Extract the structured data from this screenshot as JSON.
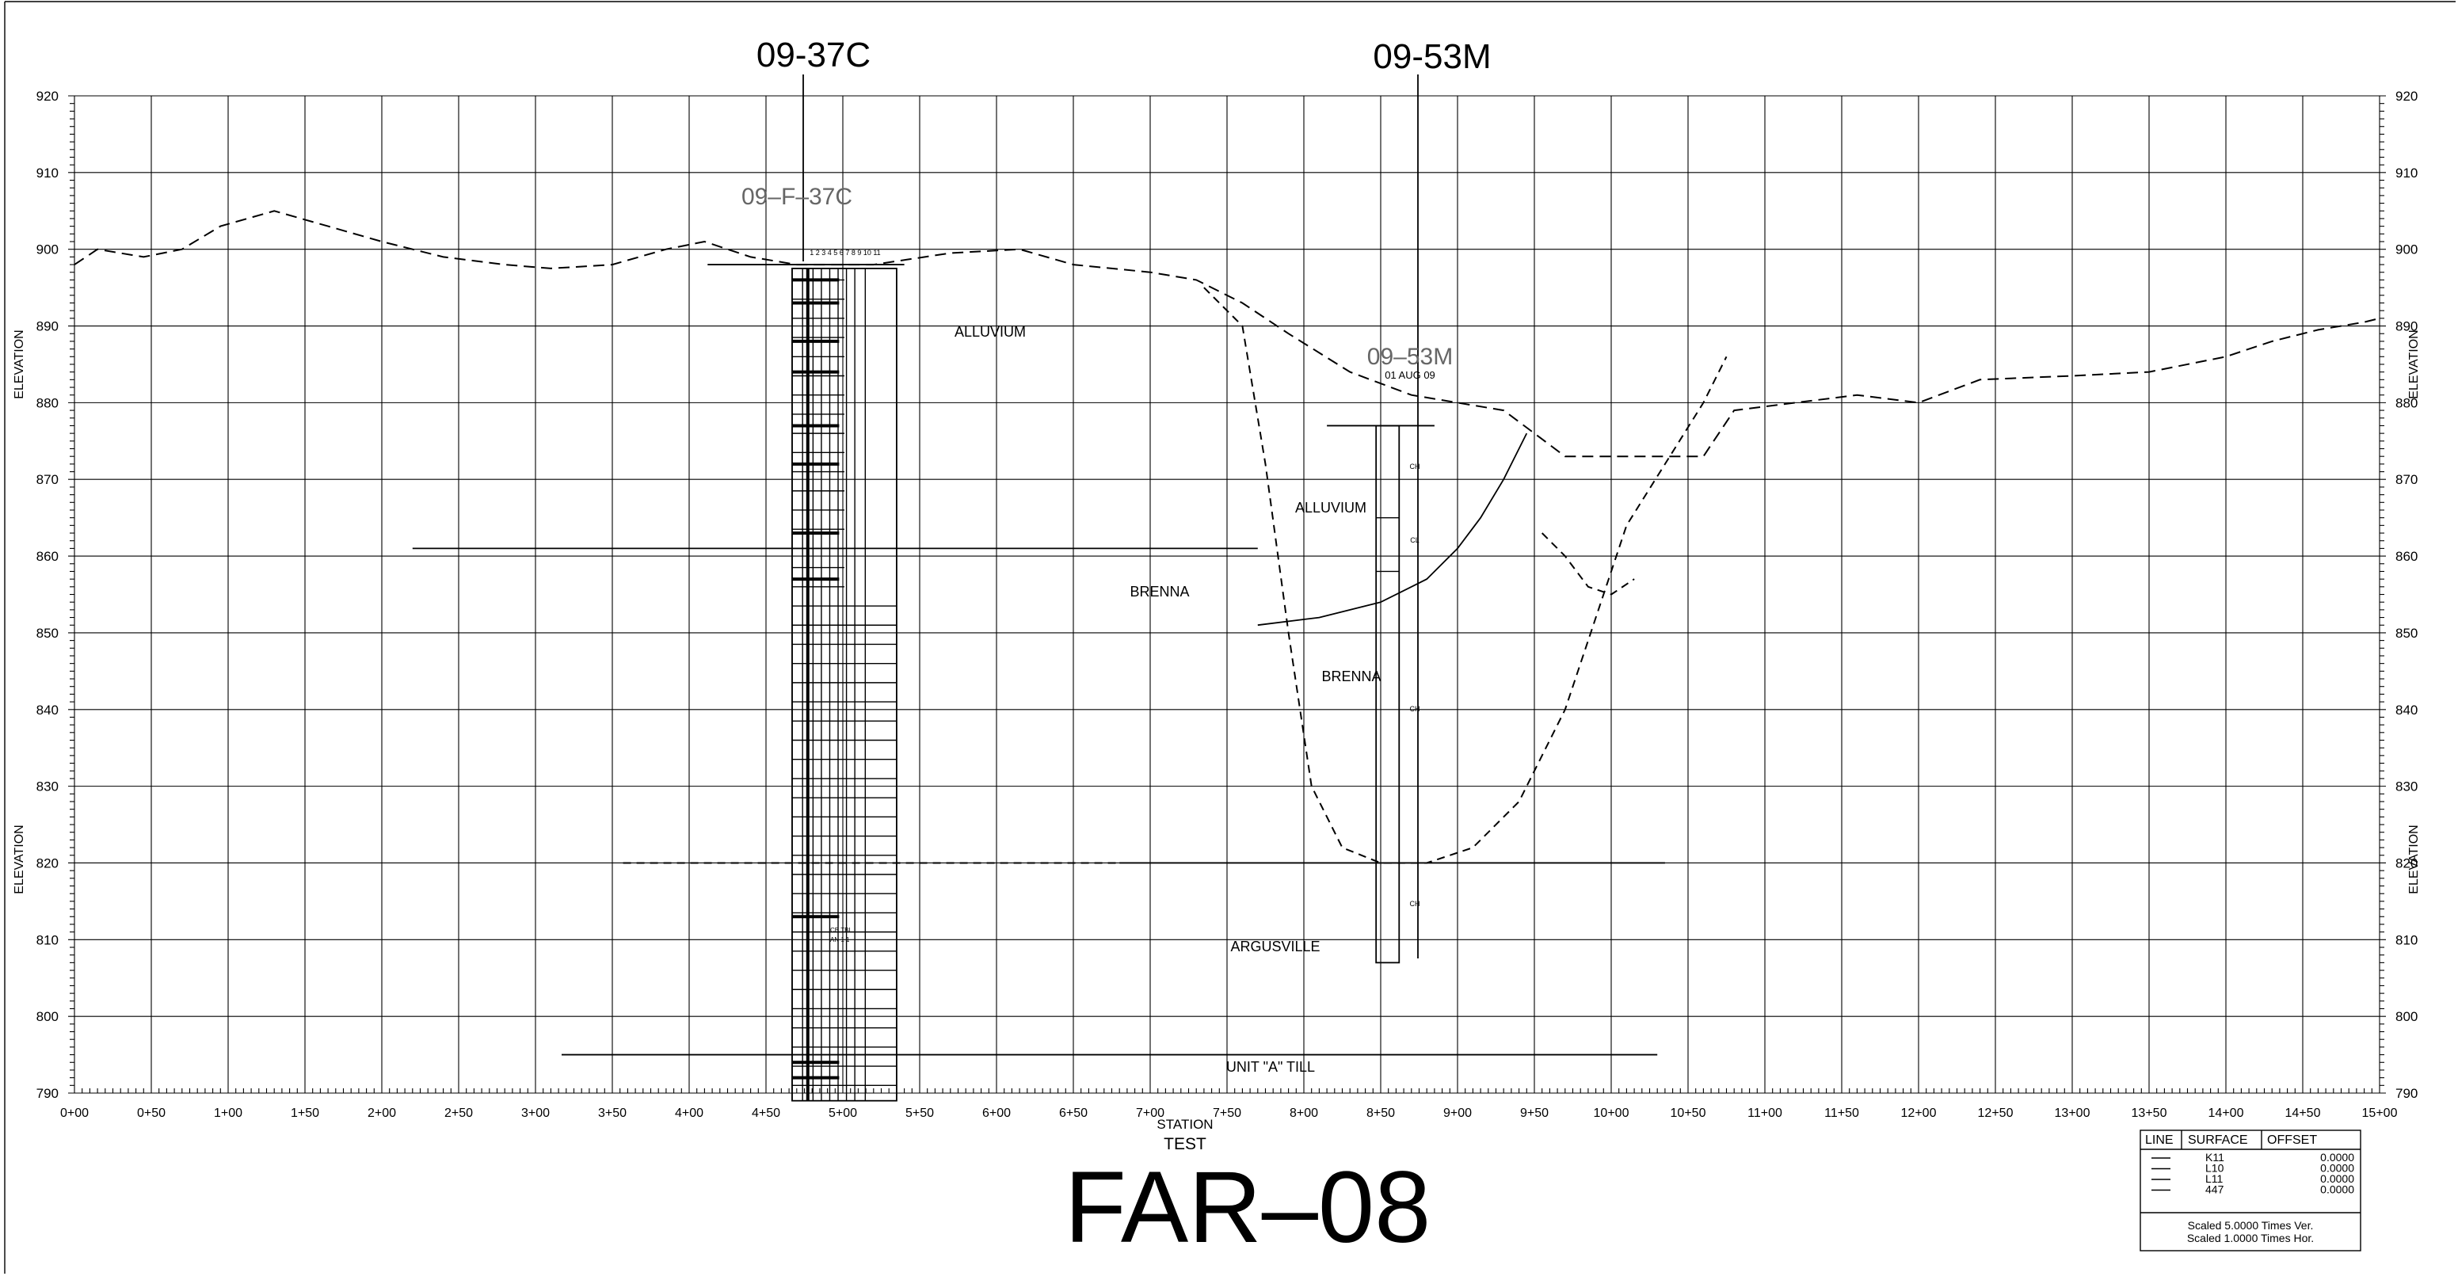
{
  "drawing_title": "FAR–08",
  "boring_labels": [
    "09-37C",
    "09-53M"
  ],
  "log_labels": {
    "log1_name": "09–F–37C",
    "log1_columns": "1 2 3 4 5 6 7 8 9 10 11",
    "log1_note_line1": "CB TBL",
    "log1_note_line2": "AN 1 1",
    "log2_name": "09–53M",
    "log2_date": "01 AUG 09",
    "log2_codes": [
      "CH",
      "CL",
      "CH",
      "CH"
    ]
  },
  "axis": {
    "y_label": "ELEVATION",
    "x_label": "STATION",
    "x_sublabel": "TEST",
    "y_ticks": [
      "920",
      "910",
      "900",
      "890",
      "880",
      "870",
      "860",
      "850",
      "840",
      "830",
      "820",
      "810",
      "800",
      "790"
    ],
    "x_ticks": [
      "0+00",
      "0+50",
      "1+00",
      "1+50",
      "2+00",
      "2+50",
      "3+00",
      "3+50",
      "4+00",
      "4+50",
      "5+00",
      "5+50",
      "6+00",
      "6+50",
      "7+00",
      "7+50",
      "8+00",
      "8+50",
      "9+00",
      "9+50",
      "10+00",
      "10+50",
      "11+00",
      "11+50",
      "12+00",
      "12+50",
      "13+00",
      "13+50",
      "14+00",
      "14+50",
      "15+00"
    ]
  },
  "units": {
    "alluvium_1": "ALLUVIUM",
    "alluvium_2": "ALLUVIUM",
    "brenna_1": "BRENNA",
    "brenna_2": "BRENNA",
    "argusville": "ARGUSVILLE",
    "unit_a_till": "UNIT \"A\" TILL"
  },
  "legend": {
    "headers": [
      "LINE",
      "SURFACE",
      "OFFSET"
    ],
    "rows": [
      {
        "surface": "K11",
        "offset": "0.0000"
      },
      {
        "surface": "L10",
        "offset": "0.0000"
      },
      {
        "surface": "L11",
        "offset": "0.0000"
      },
      {
        "surface": "447",
        "offset": "0.0000"
      }
    ],
    "scale_ver": "Scaled 5.0000 Times Ver.",
    "scale_hor": "Scaled 1.0000 Times Hor."
  },
  "profile_data": {
    "elevation_range": [
      790,
      920
    ],
    "station_range": [
      0,
      1500
    ],
    "ground_surface": [
      [
        0,
        898
      ],
      [
        15,
        900
      ],
      [
        45,
        899
      ],
      [
        70,
        900
      ],
      [
        95,
        903
      ],
      [
        130,
        905
      ],
      [
        165,
        903
      ],
      [
        200,
        901
      ],
      [
        240,
        899
      ],
      [
        280,
        898
      ],
      [
        310,
        897.5
      ],
      [
        350,
        898
      ],
      [
        385,
        900
      ],
      [
        410,
        901
      ],
      [
        440,
        899
      ],
      [
        470,
        898
      ],
      [
        520,
        898
      ],
      [
        570,
        899.5
      ],
      [
        615,
        900
      ],
      [
        650,
        898
      ],
      [
        700,
        897
      ],
      [
        730,
        896
      ],
      [
        760,
        893
      ],
      [
        790,
        889
      ],
      [
        830,
        884
      ],
      [
        870,
        881
      ],
      [
        900,
        880
      ],
      [
        930,
        879
      ],
      [
        950,
        876
      ],
      [
        970,
        873
      ],
      [
        1060,
        873
      ],
      [
        1080,
        879
      ],
      [
        1120,
        880
      ],
      [
        1160,
        881
      ],
      [
        1200,
        880
      ],
      [
        1240,
        883
      ],
      [
        1300,
        883.5
      ],
      [
        1350,
        884
      ],
      [
        1400,
        886
      ],
      [
        1430,
        888
      ],
      [
        1460,
        889.5
      ],
      [
        1490,
        890.5
      ],
      [
        1500,
        891
      ]
    ],
    "channel_boundary": [
      [
        735,
        895
      ],
      [
        760,
        890
      ],
      [
        775,
        872
      ],
      [
        790,
        850
      ],
      [
        805,
        830
      ],
      [
        825,
        822
      ],
      [
        850,
        820
      ],
      [
        880,
        820
      ],
      [
        910,
        822
      ],
      [
        940,
        828
      ],
      [
        970,
        840
      ],
      [
        990,
        852
      ],
      [
        1010,
        864
      ],
      [
        1035,
        872
      ],
      [
        1060,
        880
      ],
      [
        1075,
        886
      ]
    ],
    "brenna_top": [
      [
        770,
        851
      ],
      [
        810,
        852
      ],
      [
        850,
        854
      ],
      [
        880,
        857
      ],
      [
        900,
        861
      ],
      [
        915,
        865
      ],
      [
        930,
        870
      ],
      [
        945,
        876
      ]
    ],
    "alluvium_pocket": [
      [
        955,
        863
      ],
      [
        970,
        860
      ],
      [
        985,
        856
      ],
      [
        1000,
        855
      ],
      [
        1015,
        857
      ]
    ],
    "argusville_contact_elevation": 820,
    "till_contact_elevation": 795
  }
}
